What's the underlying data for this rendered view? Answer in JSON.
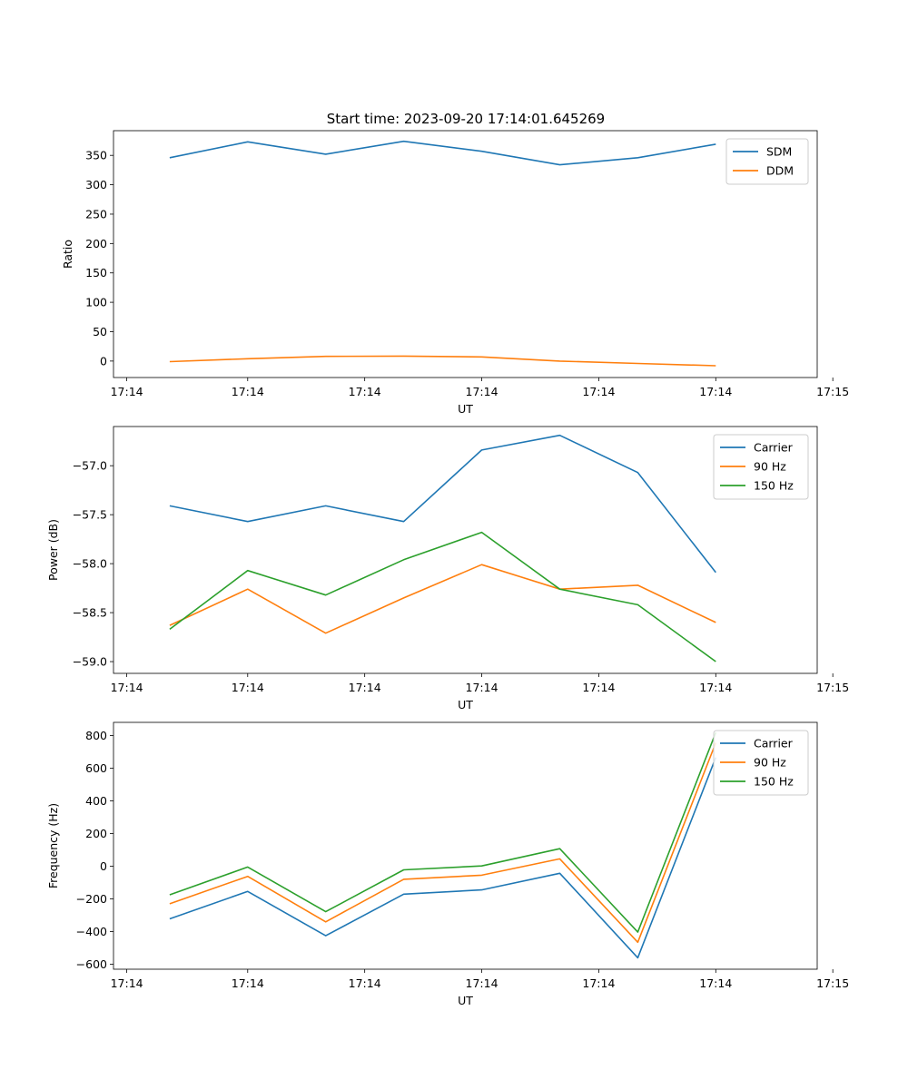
{
  "figure_title": "Start time: 2023-09-20 17:14:01.645269",
  "chart_data": [
    {
      "type": "line",
      "title": "Start time: 2023-09-20 17:14:01.645269",
      "xlabel": "UT",
      "ylabel": "Ratio",
      "x": [
        1,
        2,
        3,
        4,
        5,
        6,
        7,
        8
      ],
      "xlim": [
        0.28,
        9.3
      ],
      "xticks": [
        0.45,
        2,
        3.5,
        5,
        6.5,
        8,
        9.5
      ],
      "xtick_labels": [
        "17:14",
        "17:14",
        "17:14",
        "17:14",
        "17:14",
        "17:14",
        "17:15"
      ],
      "ylim": [
        -28,
        392
      ],
      "yticks": [
        0,
        50,
        100,
        150,
        200,
        250,
        300,
        350
      ],
      "ytick_labels": [
        "0",
        "50",
        "100",
        "150",
        "200",
        "250",
        "300",
        "350"
      ],
      "legend_position": "top-right",
      "series": [
        {
          "name": "SDM",
          "color": "#1f77b4",
          "values": [
            346,
            373,
            352,
            374,
            357,
            334,
            346,
            369
          ]
        },
        {
          "name": "DDM",
          "color": "#ff7f0e",
          "values": [
            -1,
            4,
            8,
            8.5,
            7,
            0,
            -4,
            -8
          ]
        }
      ]
    },
    {
      "type": "line",
      "title": "",
      "xlabel": "UT",
      "ylabel": "Power (dB)",
      "x": [
        1,
        2,
        3,
        4,
        5,
        6,
        7,
        8
      ],
      "xlim": [
        0.28,
        9.3
      ],
      "xticks": [
        0.45,
        2,
        3.5,
        5,
        6.5,
        8,
        9.5
      ],
      "xtick_labels": [
        "17:14",
        "17:14",
        "17:14",
        "17:14",
        "17:14",
        "17:14",
        "17:15"
      ],
      "ylim": [
        -59.12,
        -56.6
      ],
      "yticks": [
        -59.0,
        -58.5,
        -58.0,
        -57.5,
        -57.0
      ],
      "ytick_labels": [
        "−59.0",
        "−58.5",
        "−58.0",
        "−57.5",
        "−57.0"
      ],
      "legend_position": "top-right",
      "series": [
        {
          "name": "Carrier",
          "color": "#1f77b4",
          "values": [
            -57.41,
            -57.57,
            -57.41,
            -57.57,
            -56.84,
            -56.69,
            -57.07,
            -58.09
          ]
        },
        {
          "name": "90 Hz",
          "color": "#ff7f0e",
          "values": [
            -58.63,
            -58.26,
            -58.71,
            -58.35,
            -58.01,
            -58.26,
            -58.22,
            -58.6
          ]
        },
        {
          "name": "150 Hz",
          "color": "#2ca02c",
          "values": [
            -58.67,
            -58.07,
            -58.32,
            -57.96,
            -57.68,
            -58.26,
            -58.42,
            -59.0
          ]
        }
      ]
    },
    {
      "type": "line",
      "title": "",
      "xlabel": "UT",
      "ylabel": "Frequency (Hz)",
      "x": [
        1,
        2,
        3,
        4,
        5,
        6,
        7,
        8
      ],
      "xlim": [
        0.28,
        9.3
      ],
      "xticks": [
        0.45,
        2,
        3.5,
        5,
        6.5,
        8,
        9.5
      ],
      "xtick_labels": [
        "17:14",
        "17:14",
        "17:14",
        "17:14",
        "17:14",
        "17:14",
        "17:15"
      ],
      "ylim": [
        -630,
        880
      ],
      "yticks": [
        -600,
        -400,
        -200,
        0,
        200,
        400,
        600,
        800
      ],
      "ytick_labels": [
        "−600",
        "−400",
        "−200",
        "0",
        "200",
        "400",
        "600",
        "800"
      ],
      "legend_position": "top-right",
      "series": [
        {
          "name": "Carrier",
          "color": "#1f77b4",
          "values": [
            -322,
            -154,
            -425,
            -171,
            -145,
            -43,
            -560,
            665
          ]
        },
        {
          "name": "90 Hz",
          "color": "#ff7f0e",
          "values": [
            -230,
            -62,
            -340,
            -80,
            -55,
            45,
            -465,
            755
          ]
        },
        {
          "name": "150 Hz",
          "color": "#2ca02c",
          "values": [
            -175,
            -5,
            -278,
            -22,
            2,
            107,
            -403,
            818
          ]
        }
      ]
    }
  ]
}
